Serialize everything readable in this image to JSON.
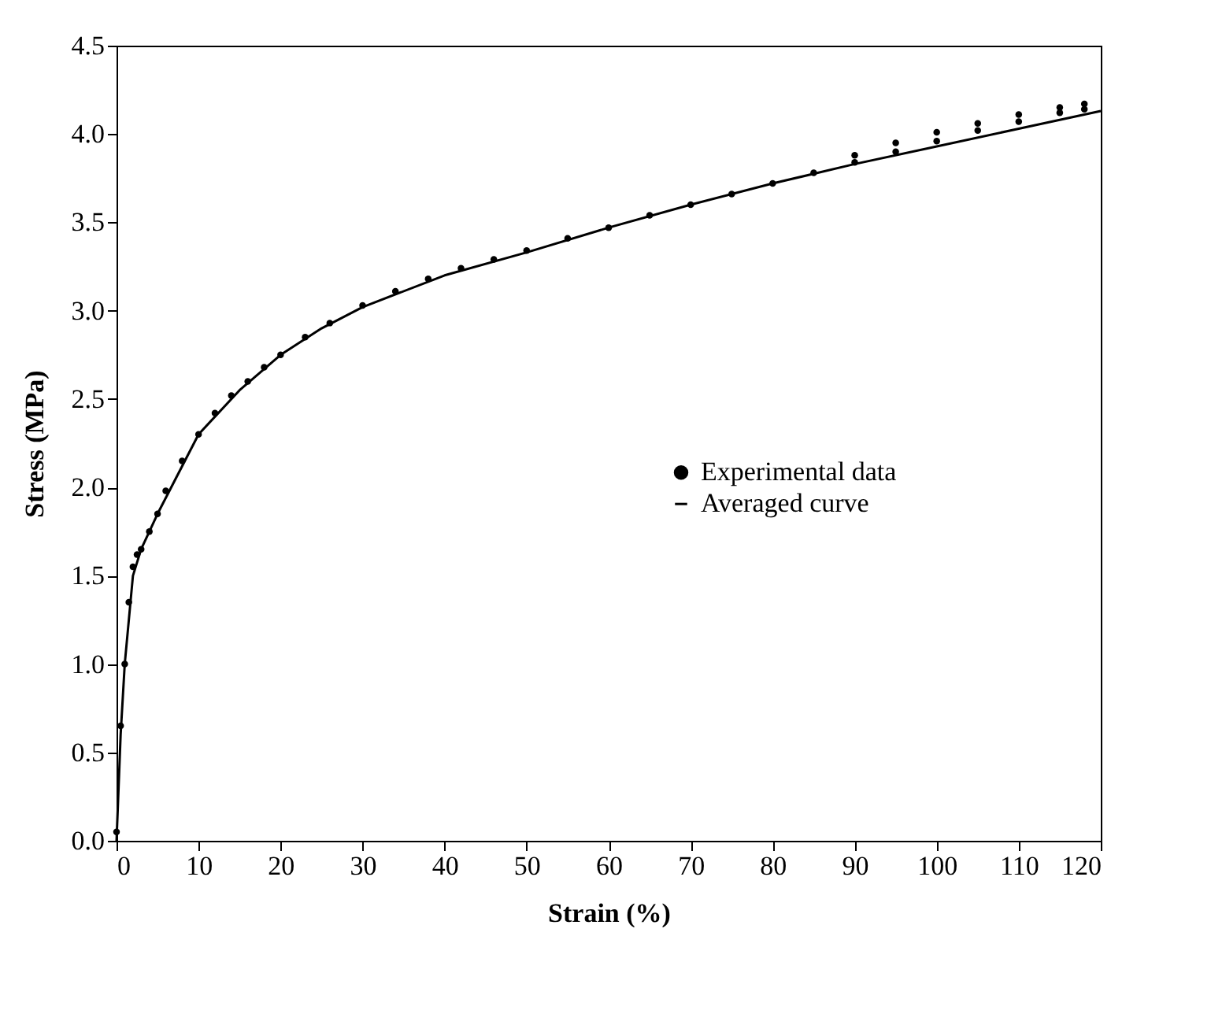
{
  "chart_data": {
    "type": "scatter",
    "xlabel": "Strain (%)",
    "ylabel": "Stress (MPa)",
    "xlim": [
      0,
      120
    ],
    "xticks": [
      0,
      10,
      20,
      30,
      40,
      50,
      60,
      70,
      80,
      90,
      100,
      110,
      120
    ],
    "ylim": [
      0,
      4.5
    ],
    "yticks": [
      {
        "value": 0,
        "label": "0.0"
      },
      0.5,
      {
        "value": 1,
        "label": "1.0"
      },
      1.5,
      {
        "value": 2,
        "label": "2.0"
      },
      2.5,
      {
        "value": 3,
        "label": "3.0"
      },
      3.5,
      {
        "value": 4,
        "label": "4.0"
      },
      4.5
    ],
    "grid": false,
    "legend": "right",
    "line_style": "solid",
    "series": [
      {
        "name": "Experimental data",
        "marker": "circle",
        "color": "#000000",
        "x": [
          0,
          0.5,
          1,
          1.5,
          2,
          2.5,
          3,
          4,
          5,
          6,
          8,
          10,
          12,
          14,
          16,
          18,
          20,
          23,
          26,
          30,
          34,
          38,
          42,
          46,
          50,
          55,
          60,
          65,
          70,
          75,
          80,
          85,
          90,
          95,
          100,
          105,
          110,
          115,
          118,
          90,
          95,
          100,
          105,
          110,
          115,
          118
        ],
        "values": [
          0.05,
          0.65,
          1.0,
          1.35,
          1.55,
          1.62,
          1.65,
          1.75,
          1.85,
          1.98,
          2.15,
          2.3,
          2.42,
          2.52,
          2.6,
          2.68,
          2.75,
          2.85,
          2.93,
          3.03,
          3.11,
          3.18,
          3.24,
          3.29,
          3.34,
          3.41,
          3.47,
          3.54,
          3.6,
          3.66,
          3.72,
          3.78,
          3.84,
          3.9,
          3.96,
          4.02,
          4.07,
          4.12,
          4.14,
          3.88,
          3.95,
          4.01,
          4.06,
          4.11,
          4.15,
          4.17
        ]
      },
      {
        "name": "Averaged curve",
        "type": "line",
        "color": "#000000",
        "x": [
          0,
          0.5,
          1,
          2,
          3,
          5,
          10,
          15,
          20,
          25,
          30,
          40,
          50,
          60,
          70,
          80,
          90,
          100,
          110,
          120
        ],
        "values": [
          0,
          0.6,
          1.0,
          1.5,
          1.65,
          1.85,
          2.3,
          2.55,
          2.75,
          2.9,
          3.02,
          3.2,
          3.33,
          3.47,
          3.6,
          3.72,
          3.83,
          3.93,
          4.03,
          4.13
        ]
      }
    ]
  }
}
